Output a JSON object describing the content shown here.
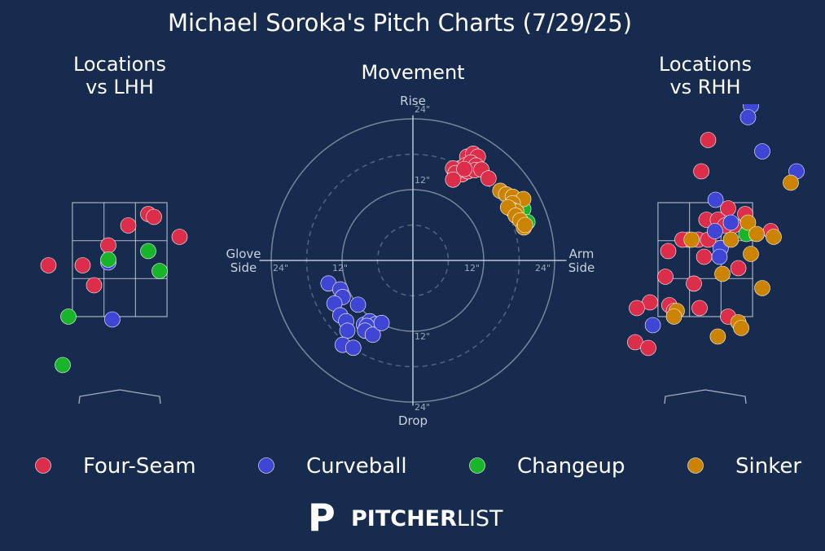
{
  "title": "Michael Soroka's Pitch Charts (7/29/25)",
  "colors": {
    "background": "#162b4d",
    "grid": "#c9d2dd",
    "Four-Seam": "#dc2e4a",
    "Curveball": "#3f46d6",
    "Changeup": "#18b52b",
    "Sinker": "#cc8400"
  },
  "legend": [
    "Four-Seam",
    "Curveball",
    "Changeup",
    "Sinker"
  ],
  "brand": {
    "mark": "P",
    "name_bold": "PITCHER",
    "name_light": "LIST"
  },
  "chart_data": [
    {
      "type": "scatter",
      "title_line1": "Locations",
      "title_line2": "vs LHH",
      "xlim": [
        -2.5,
        2.5
      ],
      "ylim": [
        -0.3,
        5.0
      ],
      "strike_zone": {
        "x": [
          -0.83,
          0.83
        ],
        "z": [
          1.5,
          3.5
        ]
      },
      "series": [
        {
          "name": "Four-Seam",
          "points": [
            [
              0.15,
              3.1
            ],
            [
              0.5,
              3.3
            ],
            [
              0.6,
              3.25
            ],
            [
              1.05,
              2.9
            ],
            [
              -0.2,
              2.75
            ],
            [
              -1.25,
              2.4
            ],
            [
              -0.65,
              2.4
            ],
            [
              -0.45,
              2.05
            ]
          ]
        },
        {
          "name": "Curveball",
          "points": [
            [
              -0.2,
              2.45
            ],
            [
              -0.13,
              1.45
            ]
          ]
        },
        {
          "name": "Changeup",
          "points": [
            [
              -0.2,
              2.5
            ],
            [
              0.5,
              2.65
            ],
            [
              0.7,
              2.3
            ],
            [
              -0.9,
              1.5
            ],
            [
              -1.0,
              0.65
            ]
          ]
        }
      ]
    },
    {
      "type": "scatter",
      "title": "Movement",
      "labels": {
        "top": "Rise",
        "bottom": "Drop",
        "left_1": "Glove",
        "left_2": "Side",
        "right_1": "Arm",
        "right_2": "Side"
      },
      "ring_labels": [
        "12\"",
        "24\""
      ],
      "xlim": [
        -24,
        24
      ],
      "ylim": [
        -24,
        24
      ],
      "series": [
        {
          "name": "Four-Seam",
          "points": [
            [
              9.2,
              17.6
            ],
            [
              10.2,
              18.1
            ],
            [
              11.0,
              17.6
            ],
            [
              7.9,
              15.6
            ],
            [
              8.8,
              16.1
            ],
            [
              9.8,
              16.6
            ],
            [
              10.7,
              16.1
            ],
            [
              8.3,
              14.6
            ],
            [
              9.3,
              15.1
            ],
            [
              10.5,
              15.3
            ],
            [
              11.6,
              15.4
            ],
            [
              6.8,
              15.6
            ],
            [
              7.2,
              14.8
            ],
            [
              6.8,
              13.7
            ],
            [
              8.7,
              15.5
            ],
            [
              12.8,
              13.9
            ]
          ]
        },
        {
          "name": "Curveball",
          "points": [
            [
              -14.3,
              -3.9
            ],
            [
              -12.3,
              -4.9
            ],
            [
              -11.9,
              -6.2
            ],
            [
              -13.3,
              -7.3
            ],
            [
              -9.3,
              -7.5
            ],
            [
              -12.3,
              -9.3
            ],
            [
              -11.3,
              -10.3
            ],
            [
              -8.3,
              -10.9
            ],
            [
              -7.3,
              -10.3
            ],
            [
              -6.3,
              -10.8
            ],
            [
              -11.1,
              -11.9
            ],
            [
              -7.8,
              -11.1
            ],
            [
              -8.1,
              -11.9
            ],
            [
              -6.8,
              -12.6
            ],
            [
              -11.9,
              -14.3
            ],
            [
              -10.1,
              -14.8
            ],
            [
              -5.3,
              -10.6
            ]
          ]
        },
        {
          "name": "Changeup",
          "points": [
            [
              18.7,
              8.7
            ],
            [
              19.4,
              6.5
            ],
            [
              18.8,
              5.9
            ]
          ]
        },
        {
          "name": "Sinker",
          "points": [
            [
              14.8,
              11.8
            ],
            [
              15.8,
              11.2
            ],
            [
              16.9,
              10.8
            ],
            [
              18.7,
              10.4
            ],
            [
              16.9,
              9.7
            ],
            [
              16.8,
              8.6
            ],
            [
              17.5,
              8.3
            ],
            [
              16.1,
              9.0
            ],
            [
              17.4,
              7.6
            ],
            [
              18.2,
              6.8
            ],
            [
              18.8,
              5.6
            ],
            [
              19.0,
              6.0
            ]
          ]
        }
      ]
    },
    {
      "type": "scatter",
      "title_line1": "Locations",
      "title_line2": "vs RHH",
      "xlim": [
        -2.5,
        2.5
      ],
      "ylim": [
        -0.3,
        5.0
      ],
      "strike_zone": {
        "x": [
          -0.83,
          0.83
        ],
        "z": [
          1.5,
          3.5
        ]
      },
      "series": [
        {
          "name": "Four-Seam",
          "points": [
            [
              0.05,
              4.6
            ],
            [
              -0.07,
              4.05
            ],
            [
              0.02,
              3.2
            ],
            [
              0.22,
              3.2
            ],
            [
              0.4,
              3.4
            ],
            [
              0.7,
              3.3
            ],
            [
              1.15,
              3.0
            ],
            [
              0.5,
              3.1
            ],
            [
              0.35,
              3.1
            ],
            [
              -0.3,
              2.85
            ],
            [
              -0.12,
              2.85
            ],
            [
              0.05,
              2.85
            ],
            [
              -0.4,
              2.85
            ],
            [
              -0.65,
              2.65
            ],
            [
              -0.02,
              2.55
            ],
            [
              0.58,
              2.35
            ],
            [
              -0.7,
              2.2
            ],
            [
              -0.2,
              2.08
            ],
            [
              -0.1,
              1.65
            ],
            [
              -0.63,
              1.7
            ],
            [
              -0.97,
              1.75
            ],
            [
              -1.2,
              1.65
            ],
            [
              -0.55,
              1.6
            ],
            [
              0.4,
              1.5
            ],
            [
              -1.23,
              1.05
            ],
            [
              -1.0,
              0.95
            ]
          ]
        },
        {
          "name": "Curveball",
          "points": [
            [
              0.8,
              5.2
            ],
            [
              0.75,
              5.0
            ],
            [
              1.0,
              4.4
            ],
            [
              1.6,
              4.05
            ],
            [
              0.18,
              3.55
            ],
            [
              0.17,
              3.0
            ],
            [
              0.45,
              3.15
            ],
            [
              0.27,
              2.7
            ],
            [
              0.25,
              2.55
            ],
            [
              -0.92,
              1.35
            ]
          ]
        },
        {
          "name": "Changeup",
          "points": [
            [
              0.72,
              2.95
            ]
          ]
        },
        {
          "name": "Sinker",
          "points": [
            [
              1.5,
              3.85
            ],
            [
              -0.24,
              2.85
            ],
            [
              0.75,
              3.15
            ],
            [
              0.45,
              2.85
            ],
            [
              0.8,
              2.6
            ],
            [
              0.9,
              2.95
            ],
            [
              1.2,
              2.9
            ],
            [
              0.3,
              2.25
            ],
            [
              -0.5,
              1.6
            ],
            [
              -0.55,
              1.5
            ],
            [
              0.58,
              1.4
            ],
            [
              0.63,
              1.3
            ],
            [
              0.22,
              1.15
            ],
            [
              1.0,
              2.0
            ]
          ]
        }
      ]
    }
  ]
}
